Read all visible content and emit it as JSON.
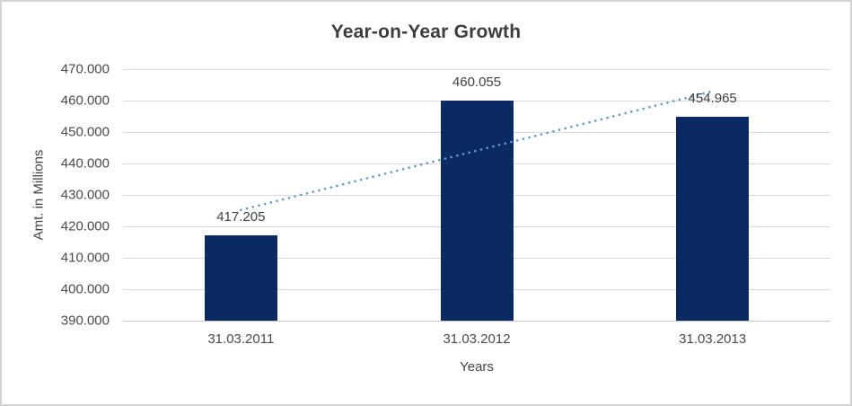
{
  "chart_data": {
    "type": "bar",
    "title": "Year-on-Year Growth",
    "xlabel": "Years",
    "ylabel": "Amt. in Millions",
    "categories": [
      "31.03.2011",
      "31.03.2012",
      "31.03.2013"
    ],
    "values": [
      417.205,
      460.055,
      454.965
    ],
    "data_labels": [
      "417.205",
      "460.055",
      "454.965"
    ],
    "ylim": [
      390,
      470
    ],
    "ytick_step": 10,
    "ytick_labels": [
      "390.000",
      "400.000",
      "410.000",
      "420.000",
      "430.000",
      "440.000",
      "450.000",
      "460.000",
      "470.000"
    ],
    "grid": true,
    "legend": false,
    "trendline": "linear-dotted",
    "colors": {
      "bar": "#0b2a63",
      "trendline": "#5b9bd5",
      "gridline": "#d9d9d9",
      "axis_line": "#c8c8c8",
      "title_text": "#3d3d3d",
      "axis_text": "#4a4a4a",
      "label_text": "#404040",
      "border": "#d4d4d4",
      "background": "#ffffff"
    }
  }
}
